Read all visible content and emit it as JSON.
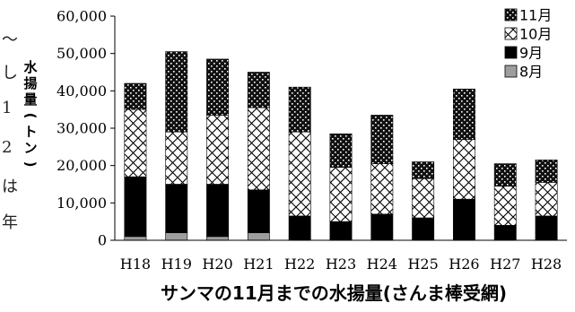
{
  "side_text": [
    "〜",
    "し",
    "1",
    "2",
    "は",
    "年"
  ],
  "chart_data": {
    "type": "bar",
    "stacked": true,
    "title": "サンマの11月までの水揚量(さんま棒受網)",
    "ylabel": "水揚量(トン)",
    "xlabel": "",
    "ylim": [
      0,
      60000
    ],
    "y_ticks": [
      0,
      10000,
      20000,
      30000,
      40000,
      50000,
      60000
    ],
    "y_tick_labels": [
      "0",
      "10,000",
      "20,000",
      "30,000",
      "40,000",
      "50,000",
      "60,000"
    ],
    "categories": [
      "H18",
      "H19",
      "H20",
      "H21",
      "H22",
      "H23",
      "H24",
      "H25",
      "H26",
      "H27",
      "H28"
    ],
    "grid": false,
    "legend_position": "top-right",
    "series": [
      {
        "name": "8月",
        "values": [
          1000,
          2000,
          1000,
          2000,
          0,
          0,
          0,
          0,
          0,
          0,
          0
        ],
        "fill": "gray"
      },
      {
        "name": "9月",
        "values": [
          16000,
          13000,
          14000,
          11500,
          6500,
          5000,
          7000,
          6000,
          11000,
          4000,
          6500
        ],
        "fill": "solid-black"
      },
      {
        "name": "10月",
        "values": [
          18000,
          14000,
          18500,
          22000,
          22500,
          14500,
          13500,
          10500,
          16000,
          10500,
          9000
        ],
        "fill": "crosshatch"
      },
      {
        "name": "11月",
        "values": [
          7000,
          21500,
          15000,
          9500,
          12000,
          9000,
          13000,
          4500,
          13500,
          6000,
          6000
        ],
        "fill": "dots"
      }
    ],
    "legend_order": [
      "11月",
      "10月",
      "9月",
      "8月"
    ],
    "colors": {
      "gray": "#9e9e9e",
      "black": "#000000",
      "white": "#ffffff"
    }
  }
}
